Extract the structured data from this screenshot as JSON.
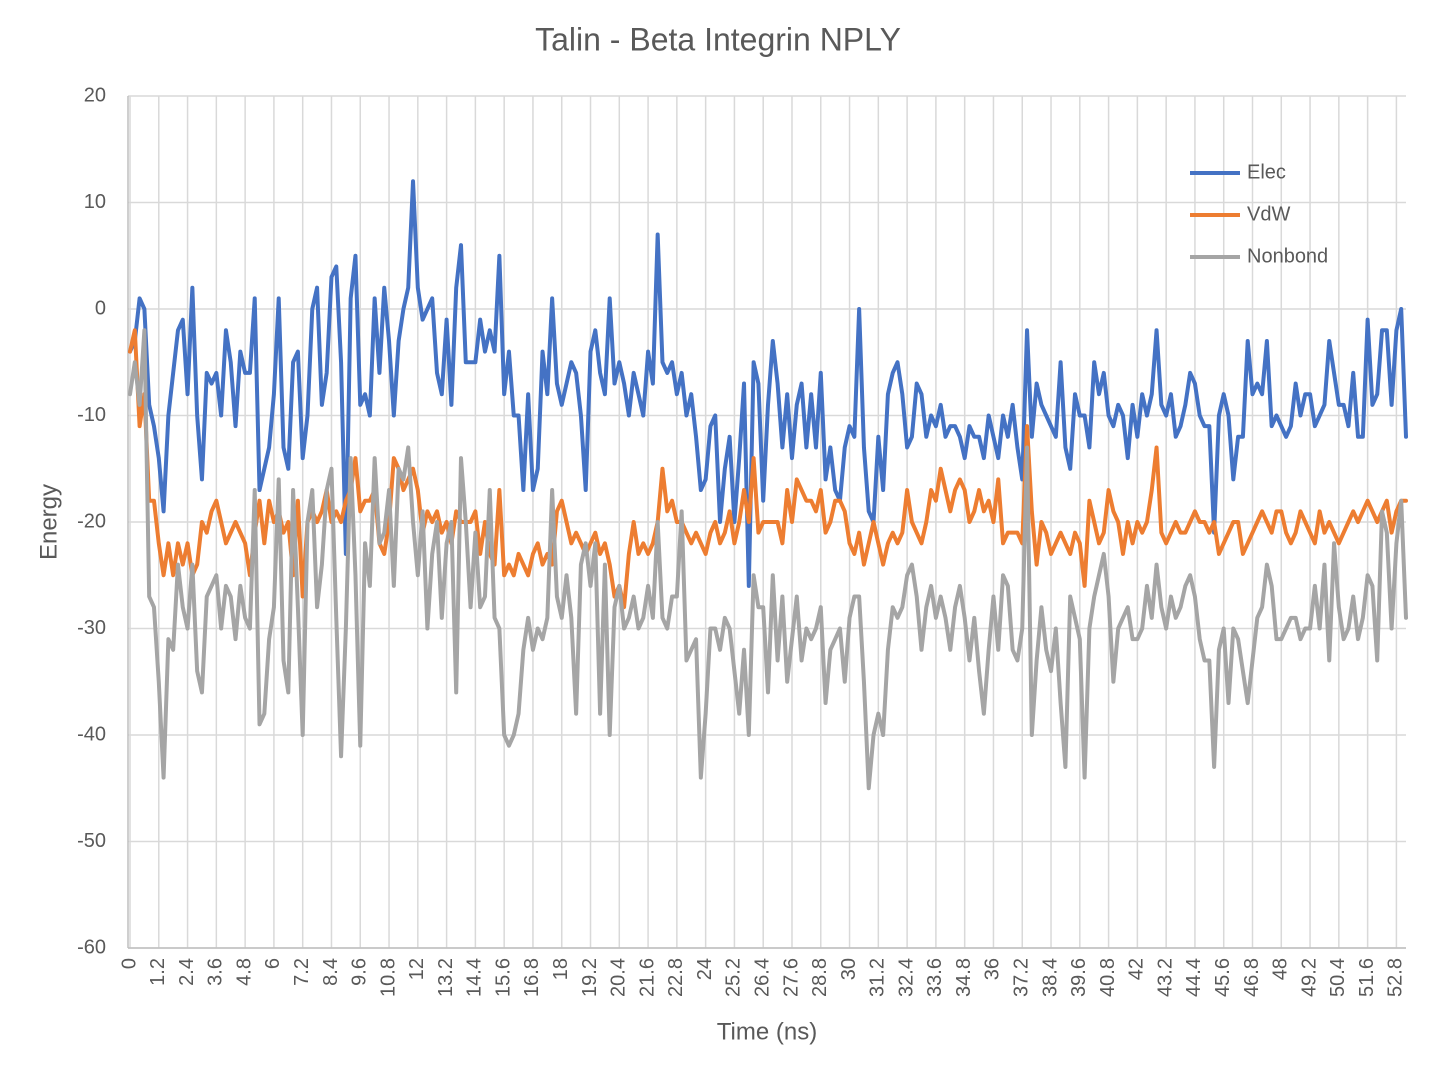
{
  "chart_data": {
    "type": "line",
    "title": "Talin - Beta Integrin NPLY",
    "x_label": "Time (ns)",
    "y_label": "Energy",
    "ylim": [
      -60,
      20
    ],
    "yticks": [
      -60,
      -50,
      -40,
      -30,
      -20,
      -10,
      0,
      10,
      20
    ],
    "grid": true,
    "legend": "upper right",
    "categories": [
      0,
      null,
      null,
      null,
      null,
      null,
      1.2,
      null,
      null,
      null,
      null,
      null,
      2.4,
      null,
      null,
      null,
      null,
      null,
      3.6,
      null,
      null,
      null,
      null,
      null,
      4.8,
      null,
      null,
      null,
      null,
      null,
      6,
      null,
      null,
      null,
      null,
      null,
      7.2,
      null,
      null,
      null,
      null,
      null,
      8.4,
      null,
      null,
      null,
      null,
      null,
      9.6,
      null,
      null,
      null,
      null,
      null,
      10.8,
      null,
      null,
      null,
      null,
      null,
      12,
      null,
      null,
      null,
      null,
      null,
      13.2,
      null,
      null,
      null,
      null,
      null,
      14.4,
      null,
      null,
      null,
      null,
      null,
      15.6,
      null,
      null,
      null,
      null,
      null,
      16.8,
      null,
      null,
      null,
      null,
      null,
      18,
      null,
      null,
      null,
      null,
      null,
      19.2,
      null,
      null,
      null,
      null,
      null,
      20.4,
      null,
      null,
      null,
      null,
      null,
      21.6,
      null,
      null,
      null,
      null,
      null,
      22.8,
      null,
      null,
      null,
      null,
      null,
      24,
      null,
      null,
      null,
      null,
      null,
      25.2,
      null,
      null,
      null,
      null,
      null,
      26.4,
      null,
      null,
      null,
      null,
      null,
      27.6,
      null,
      null,
      null,
      null,
      null,
      28.8,
      null,
      null,
      null,
      null,
      null,
      30,
      null,
      null,
      null,
      null,
      null,
      31.2,
      null,
      null,
      null,
      null,
      null,
      32.4,
      null,
      null,
      null,
      null,
      null,
      33.6,
      null,
      null,
      null,
      null,
      null,
      34.8,
      null,
      null,
      null,
      null,
      null,
      36,
      null,
      null,
      null,
      null,
      null,
      37.2,
      null,
      null,
      null,
      null,
      null,
      38.4,
      null,
      null,
      null,
      null,
      null,
      39.6,
      null,
      null,
      null,
      null,
      null,
      40.8,
      null,
      null,
      null,
      null,
      null,
      42,
      null,
      null,
      null,
      null,
      null,
      43.2,
      null,
      null,
      null,
      null,
      null,
      44.4,
      null,
      null,
      null,
      null,
      null,
      45.6,
      null,
      null,
      null,
      null,
      null,
      46.8,
      null,
      null,
      null,
      null,
      null,
      48,
      null,
      null,
      null,
      null,
      null,
      49.2,
      null,
      null,
      null,
      null,
      null,
      50.4,
      null,
      null,
      null,
      null,
      null,
      51.6,
      null,
      null,
      null,
      null,
      null,
      52.8,
      null,
      null
    ],
    "series": [
      {
        "name": "Elec",
        "color": "#4472c4",
        "values": [
          -4,
          -3,
          1,
          0,
          -9,
          -11,
          -14,
          -19,
          -10,
          -6,
          -2,
          -1,
          -8,
          2,
          -10,
          -16,
          -6,
          -7,
          -6,
          -10,
          -2,
          -5,
          -11,
          -4,
          -6,
          -6,
          1,
          -17,
          -15,
          -13,
          -8,
          1,
          -13,
          -15,
          -5,
          -4,
          -14,
          -10,
          0,
          2,
          -9,
          -6,
          3,
          4,
          -5,
          -23,
          1,
          5,
          -9,
          -8,
          -10,
          1,
          -6,
          2,
          -3,
          -10,
          -3,
          0,
          2,
          12,
          2,
          -1,
          0,
          1,
          -6,
          -8,
          -1,
          -9,
          2,
          6,
          -5,
          -5,
          -5,
          -1,
          -4,
          -2,
          -4,
          5,
          -8,
          -4,
          -10,
          -10,
          -17,
          -8,
          -17,
          -15,
          -4,
          -8,
          1,
          -7,
          -9,
          -7,
          -5,
          -6,
          -10,
          -17,
          -4,
          -2,
          -6,
          -8,
          1,
          -7,
          -5,
          -7,
          -10,
          -6,
          -8,
          -10,
          -4,
          -7,
          7,
          -5,
          -6,
          -5,
          -8,
          -6,
          -10,
          -8,
          -12,
          -17,
          -16,
          -11,
          -10,
          -20,
          -15,
          -12,
          -20,
          -14,
          -7,
          -26,
          -5,
          -7,
          -18,
          -9,
          -3,
          -7,
          -13,
          -8,
          -14,
          -9,
          -7,
          -13,
          -8,
          -13,
          -6,
          -16,
          -13,
          -17,
          -18,
          -13,
          -11,
          -12,
          0,
          -13,
          -19,
          -20,
          -12,
          -17,
          -8,
          -6,
          -5,
          -8,
          -13,
          -12,
          -7,
          -8,
          -12,
          -10,
          -11,
          -9,
          -12,
          -11,
          -11,
          -12,
          -14,
          -11,
          -12,
          -12,
          -14,
          -10,
          -12,
          -14,
          -10,
          -12,
          -9,
          -13,
          -16,
          -2,
          -12,
          -7,
          -9,
          -10,
          -11,
          -12,
          -5,
          -13,
          -15,
          -8,
          -10,
          -10,
          -13,
          -5,
          -8,
          -6,
          -10,
          -11,
          -9,
          -10,
          -14,
          -9,
          -12,
          -8,
          -10,
          -8,
          -2,
          -9,
          -10,
          -8,
          -12,
          -11,
          -9,
          -6,
          -7,
          -10,
          -11,
          -11,
          -21,
          -10,
          -8,
          -10,
          -16,
          -12,
          -12,
          -3,
          -8,
          -7,
          -8,
          -3,
          -11,
          -10,
          -11,
          -12,
          -11,
          -7,
          -10,
          -8,
          -8,
          -11,
          -10,
          -9,
          -3,
          -6,
          -9,
          -9,
          -11,
          -6,
          -12,
          -12,
          -1,
          -9,
          -8,
          -2,
          -2,
          -9,
          -2,
          0,
          -12
        ]
      },
      {
        "name": "VdW",
        "color": "#ed7d31",
        "values": [
          -4,
          -2,
          -11,
          -8,
          -18,
          -18,
          -22,
          -25,
          -22,
          -25,
          -22,
          -24,
          -22,
          -25,
          -24,
          -20,
          -21,
          -19,
          -18,
          -20,
          -22,
          -21,
          -20,
          -21,
          -22,
          -25,
          -21,
          -18,
          -22,
          -18,
          -20,
          -19,
          -21,
          -20,
          -25,
          -18,
          -27,
          -20,
          -19,
          -20,
          -19,
          -17,
          -20,
          -19,
          -20,
          -18,
          -17,
          -14,
          -19,
          -18,
          -18,
          -17,
          -22,
          -23,
          -20,
          -14,
          -15,
          -17,
          -16,
          -15,
          -17,
          -21,
          -19,
          -20,
          -19,
          -21,
          -20,
          -22,
          -19,
          -20,
          -20,
          -20,
          -19,
          -23,
          -20,
          -23,
          -24,
          -17,
          -25,
          -24,
          -25,
          -23,
          -24,
          -25,
          -23,
          -22,
          -24,
          -23,
          -24,
          -19,
          -18,
          -20,
          -22,
          -21,
          -22,
          -23,
          -22,
          -21,
          -23,
          -22,
          -24,
          -27,
          -26,
          -28,
          -23,
          -20,
          -23,
          -22,
          -23,
          -22,
          -20,
          -15,
          -19,
          -18,
          -20,
          -20,
          -21,
          -22,
          -21,
          -22,
          -23,
          -21,
          -20,
          -22,
          -21,
          -19,
          -22,
          -20,
          -17,
          -20,
          -14,
          -21,
          -20,
          -20,
          -20,
          -20,
          -22,
          -17,
          -20,
          -16,
          -17,
          -18,
          -18,
          -19,
          -17,
          -21,
          -20,
          -18,
          -18,
          -19,
          -22,
          -23,
          -21,
          -24,
          -22,
          -20,
          -22,
          -24,
          -22,
          -21,
          -22,
          -21,
          -17,
          -20,
          -21,
          -22,
          -20,
          -17,
          -18,
          -15,
          -17,
          -19,
          -17,
          -16,
          -17,
          -20,
          -19,
          -17,
          -19,
          -18,
          -20,
          -16,
          -22,
          -21,
          -21,
          -21,
          -22,
          -11,
          -19,
          -24,
          -20,
          -21,
          -23,
          -22,
          -21,
          -22,
          -23,
          -21,
          -22,
          -26,
          -18,
          -20,
          -22,
          -21,
          -17,
          -19,
          -20,
          -23,
          -20,
          -22,
          -20,
          -21,
          -20,
          -17,
          -13,
          -21,
          -22,
          -21,
          -20,
          -21,
          -21,
          -20,
          -19,
          -20,
          -20,
          -21,
          -20,
          -23,
          -22,
          -21,
          -20,
          -20,
          -23,
          -22,
          -21,
          -20,
          -19,
          -20,
          -21,
          -19,
          -19,
          -21,
          -22,
          -21,
          -19,
          -20,
          -21,
          -22,
          -19,
          -21,
          -20,
          -21,
          -22,
          -21,
          -20,
          -19,
          -20,
          -19,
          -18,
          -19,
          -20,
          -19,
          -18,
          -21,
          -19,
          -18,
          -18
        ]
      },
      {
        "name": "Nonbond",
        "color": "#a5a5a5",
        "values": [
          -8,
          -5,
          -9,
          -2,
          -27,
          -28,
          -35,
          -44,
          -31,
          -32,
          -24,
          -28,
          -30,
          -24,
          -34,
          -36,
          -27,
          -26,
          -25,
          -30,
          -26,
          -27,
          -31,
          -26,
          -29,
          -30,
          -17,
          -39,
          -38,
          -31,
          -28,
          -16,
          -33,
          -36,
          -17,
          -28,
          -40,
          -20,
          -17,
          -28,
          -24,
          -17,
          -15,
          -29,
          -42,
          -30,
          -14,
          -25,
          -41,
          -22,
          -26,
          -14,
          -22,
          -21,
          -17,
          -26,
          -15,
          -16,
          -13,
          -20,
          -25,
          -19,
          -30,
          -23,
          -20,
          -29,
          -22,
          -20,
          -36,
          -14,
          -20,
          -28,
          -21,
          -28,
          -27,
          -17,
          -29,
          -30,
          -40,
          -41,
          -40,
          -38,
          -32,
          -29,
          -32,
          -30,
          -31,
          -29,
          -17,
          -27,
          -29,
          -25,
          -29,
          -38,
          -24,
          -22,
          -26,
          -22,
          -38,
          -24,
          -40,
          -28,
          -26,
          -30,
          -29,
          -27,
          -30,
          -29,
          -26,
          -29,
          -20,
          -29,
          -30,
          -27,
          -27,
          -19,
          -33,
          -32,
          -31,
          -44,
          -38,
          -30,
          -30,
          -32,
          -29,
          -30,
          -34,
          -38,
          -32,
          -40,
          -25,
          -28,
          -28,
          -36,
          -25,
          -33,
          -27,
          -35,
          -31,
          -27,
          -33,
          -30,
          -31,
          -30,
          -28,
          -37,
          -32,
          -31,
          -30,
          -35,
          -29,
          -27,
          -27,
          -35,
          -45,
          -40,
          -38,
          -40,
          -32,
          -28,
          -29,
          -28,
          -25,
          -24,
          -27,
          -32,
          -28,
          -26,
          -29,
          -27,
          -29,
          -32,
          -28,
          -26,
          -29,
          -33,
          -29,
          -34,
          -38,
          -32,
          -27,
          -32,
          -25,
          -26,
          -32,
          -33,
          -30,
          -13,
          -40,
          -33,
          -28,
          -32,
          -34,
          -30,
          -37,
          -43,
          -27,
          -29,
          -31,
          -44,
          -30,
          -27,
          -25,
          -23,
          -27,
          -35,
          -30,
          -29,
          -28,
          -31,
          -31,
          -30,
          -26,
          -29,
          -24,
          -28,
          -30,
          -27,
          -29,
          -28,
          -26,
          -25,
          -27,
          -31,
          -33,
          -33,
          -43,
          -32,
          -30,
          -37,
          -30,
          -31,
          -34,
          -37,
          -33,
          -29,
          -28,
          -24,
          -26,
          -31,
          -31,
          -30,
          -29,
          -29,
          -31,
          -30,
          -30,
          -26,
          -30,
          -24,
          -33,
          -22,
          -28,
          -31,
          -30,
          -27,
          -31,
          -29,
          -25,
          -26,
          -33,
          -19,
          -21,
          -30,
          -22,
          -18,
          -29
        ]
      }
    ]
  }
}
